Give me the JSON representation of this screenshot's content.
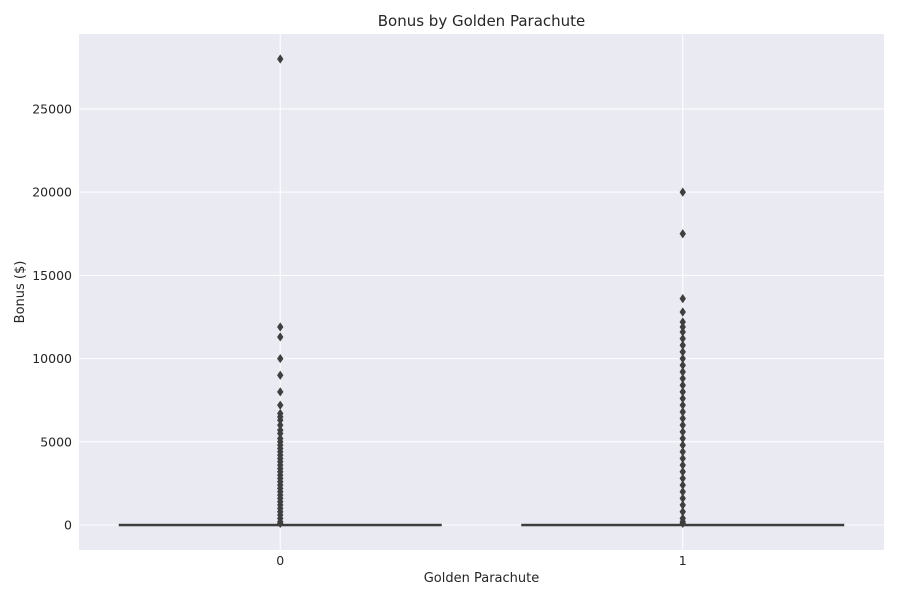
{
  "chart_data": {
    "type": "box",
    "title": "Bonus by Golden Parachute",
    "xlabel": "Golden Parachute",
    "ylabel": "Bonus ($)",
    "categories": [
      "0",
      "1"
    ],
    "ylim": [
      -1500,
      29500
    ],
    "yticks": [
      0,
      5000,
      10000,
      15000,
      20000,
      25000
    ],
    "grid": true,
    "colors": {
      "plot_background": "#eaeaf2",
      "grid": "#ffffff",
      "box_line": "#3f3f3f",
      "outlier": "#3f3f3f"
    },
    "boxes": [
      {
        "category": "0",
        "q1": 0,
        "median": 0,
        "q3": 0,
        "whisker_low": 0,
        "whisker_high": 0,
        "outliers": [
          28000,
          11900,
          11300,
          10000,
          9000,
          8000,
          7200,
          6700,
          6500,
          6300,
          6000,
          5700,
          5500,
          5200,
          5000,
          4800,
          4600,
          4400,
          4200,
          4000,
          3800,
          3600,
          3400,
          3200,
          3000,
          2800,
          2600,
          2400,
          2200,
          2000,
          1800,
          1600,
          1400,
          1200,
          1000,
          800,
          600,
          400,
          200,
          100
        ]
      },
      {
        "category": "1",
        "q1": 0,
        "median": 0,
        "q3": 0,
        "whisker_low": 0,
        "whisker_high": 0,
        "outliers": [
          20000,
          17500,
          13600,
          12800,
          12200,
          11900,
          11600,
          11200,
          10800,
          10400,
          10000,
          9600,
          9200,
          8800,
          8400,
          8000,
          7600,
          7200,
          6800,
          6400,
          6000,
          5600,
          5200,
          4800,
          4400,
          4000,
          3600,
          3200,
          2800,
          2400,
          2000,
          1600,
          1200,
          800,
          400,
          200,
          100
        ]
      }
    ]
  }
}
